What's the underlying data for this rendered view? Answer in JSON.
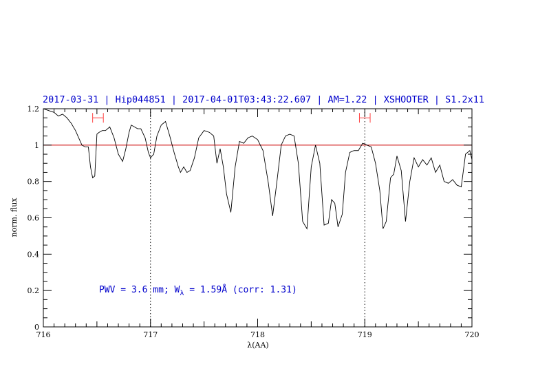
{
  "chart_data": {
    "type": "line",
    "title": "2017-03-31 | Hip044851 | 2017-04-01T03:43:22.607 | AM=1.22 | XSHOOTER | S1.2x11",
    "xlabel": "λ(AA)",
    "ylabel": "norm. flux",
    "xlim": [
      716,
      720
    ],
    "ylim": [
      0,
      1.2
    ],
    "x_ticks": [
      716,
      717,
      718,
      719,
      720
    ],
    "y_ticks": [
      0,
      0.2,
      0.4,
      0.6,
      0.8,
      1,
      1.2
    ],
    "x_tick_labels": [
      "716",
      "717",
      "718",
      "719",
      "720"
    ],
    "y_tick_labels": [
      "0",
      "0.2",
      "0.4",
      "0.6",
      "0.8",
      "1",
      "1.2"
    ],
    "continuum_level": 1.0,
    "vertical_markers": [
      717.0,
      719.0
    ],
    "integration_windows": [
      {
        "x1": 716.46,
        "x2": 716.56,
        "y": 1.15
      },
      {
        "x1": 718.95,
        "x2": 719.05,
        "y": 1.15
      }
    ],
    "annotation": {
      "prefix": "PWV = 3.6 mm; W",
      "subscript": "λ",
      "suffix": " = 1.59Å (corr: 1.31)",
      "x": 716.52,
      "y": 0.19
    },
    "colors": {
      "spectrum": "#000000",
      "continuum": "#cc0000",
      "windows": "#ff4444",
      "title": "#0000cc",
      "annotation": "#0000cc"
    },
    "series": [
      {
        "x": [
          716.0,
          716.05,
          716.1,
          716.14,
          716.18,
          716.22,
          716.26,
          716.3,
          716.33,
          716.36,
          716.39,
          716.42,
          716.44,
          716.46,
          716.48,
          716.5,
          716.52,
          716.55,
          716.58,
          716.62,
          716.66,
          716.7,
          716.74,
          716.77,
          716.8,
          716.82,
          716.85,
          716.88,
          716.91,
          716.95,
          716.98,
          717.0,
          717.03,
          717.06,
          717.1,
          717.14,
          717.18,
          717.22,
          717.26,
          717.28,
          717.31,
          717.34,
          717.37,
          717.41,
          717.45,
          717.5,
          717.55,
          717.59,
          717.62,
          717.65,
          717.68,
          717.71,
          717.75,
          717.79,
          717.83,
          717.87,
          717.91,
          717.95,
          718.0,
          718.05,
          718.1,
          718.14,
          718.18,
          718.22,
          718.26,
          718.3,
          718.34,
          718.38,
          718.42,
          718.46,
          718.5,
          718.54,
          718.58,
          718.62,
          718.66,
          718.69,
          718.72,
          718.75,
          718.79,
          718.82,
          718.86,
          718.9,
          718.94,
          718.98,
          719.02,
          719.06,
          719.1,
          719.14,
          719.17,
          719.2,
          719.24,
          719.27,
          719.3,
          719.34,
          719.38,
          719.42,
          719.46,
          719.5,
          719.54,
          719.58,
          719.62,
          719.66,
          719.7,
          719.74,
          719.78,
          719.82,
          719.86,
          719.9,
          719.94,
          719.98,
          720.0
        ],
        "values": [
          1.2,
          1.19,
          1.18,
          1.16,
          1.17,
          1.15,
          1.12,
          1.08,
          1.04,
          1.0,
          0.99,
          0.99,
          0.88,
          0.82,
          0.83,
          1.06,
          1.07,
          1.08,
          1.08,
          1.1,
          1.04,
          0.95,
          0.91,
          0.98,
          1.07,
          1.11,
          1.1,
          1.09,
          1.09,
          1.04,
          0.96,
          0.93,
          0.95,
          1.05,
          1.11,
          1.13,
          1.05,
          0.96,
          0.88,
          0.85,
          0.88,
          0.85,
          0.86,
          0.93,
          1.04,
          1.08,
          1.07,
          1.05,
          0.9,
          0.98,
          0.88,
          0.73,
          0.63,
          0.88,
          1.02,
          1.01,
          1.04,
          1.05,
          1.03,
          0.97,
          0.79,
          0.61,
          0.8,
          1.0,
          1.05,
          1.06,
          1.05,
          0.9,
          0.58,
          0.54,
          0.88,
          1.0,
          0.9,
          0.56,
          0.57,
          0.7,
          0.68,
          0.55,
          0.62,
          0.85,
          0.96,
          0.97,
          0.97,
          1.01,
          1.0,
          0.99,
          0.9,
          0.75,
          0.54,
          0.58,
          0.82,
          0.84,
          0.94,
          0.86,
          0.58,
          0.8,
          0.93,
          0.88,
          0.92,
          0.89,
          0.93,
          0.85,
          0.89,
          0.8,
          0.79,
          0.81,
          0.78,
          0.77,
          0.95,
          0.97,
          0.92
        ]
      }
    ]
  }
}
